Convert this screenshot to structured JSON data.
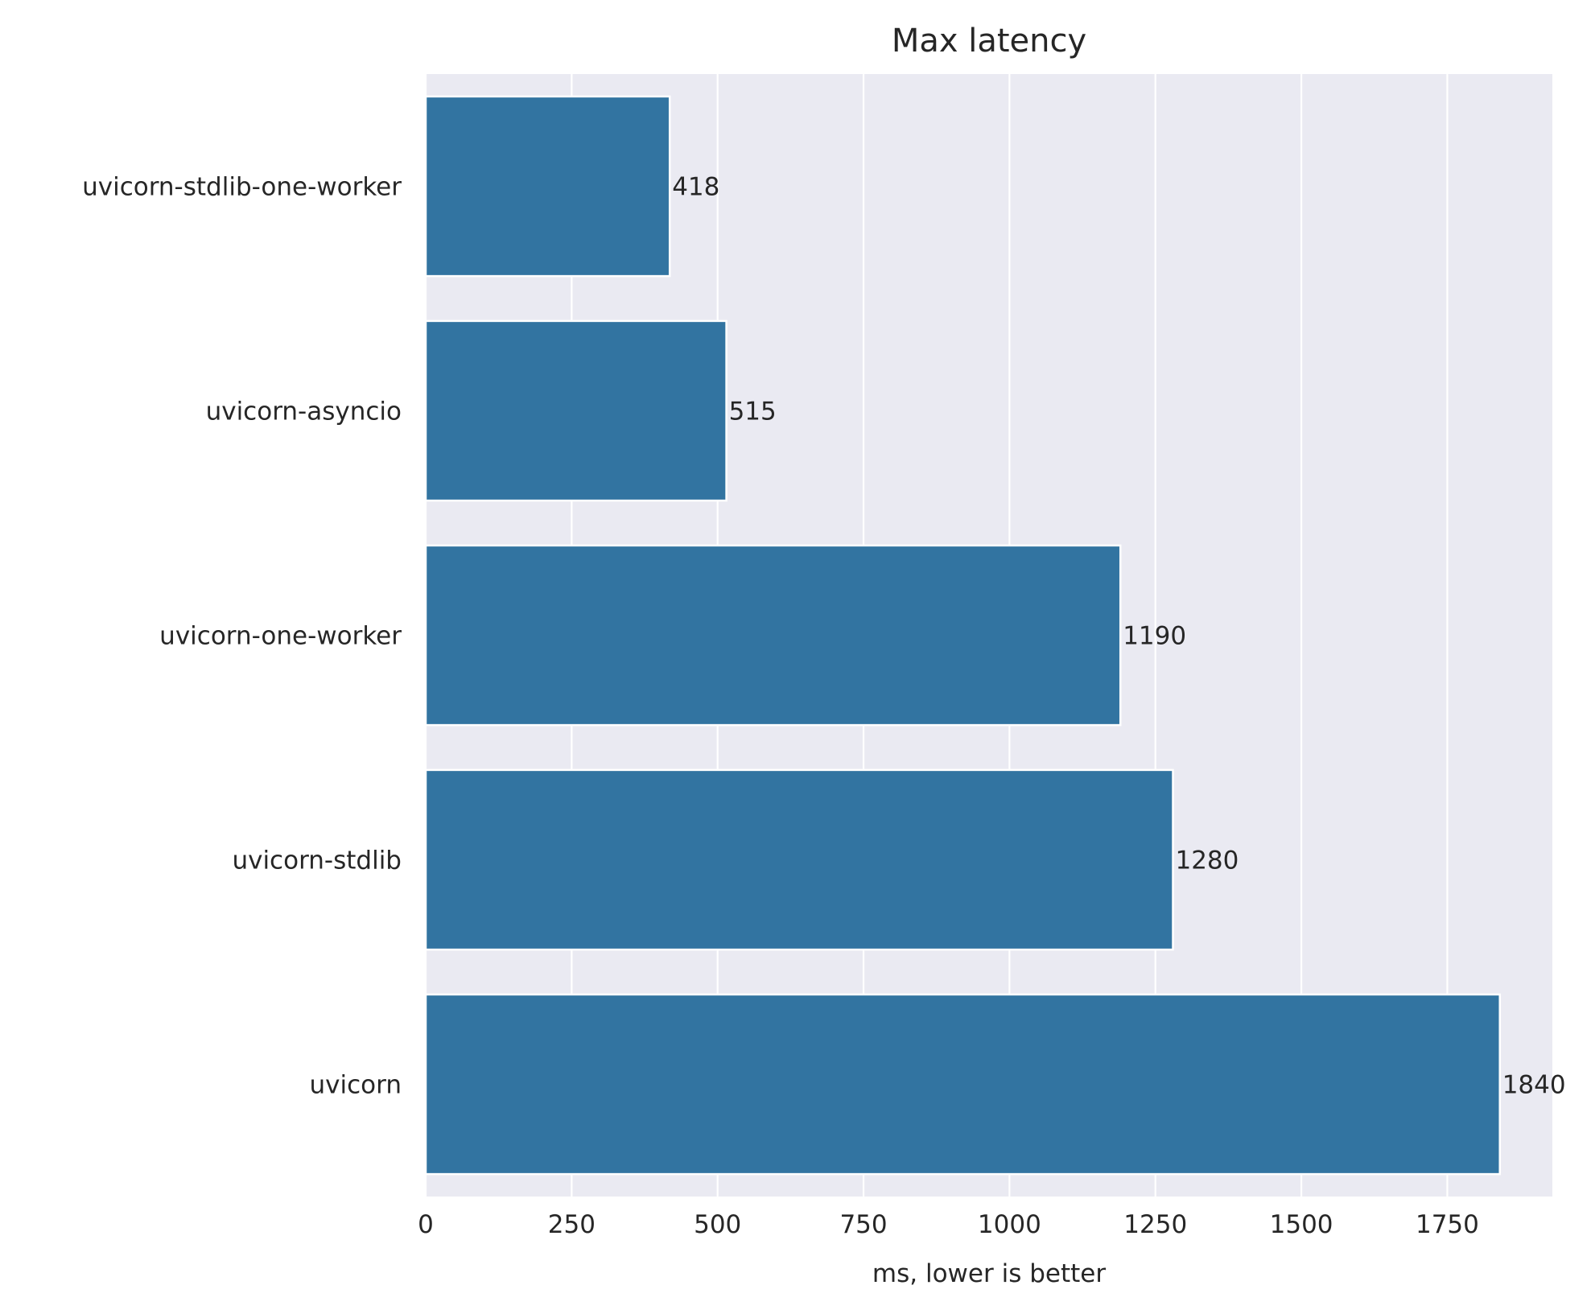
{
  "chart_data": {
    "type": "bar",
    "orientation": "horizontal",
    "title": "Max latency",
    "xlabel": "ms, lower is better",
    "ylabel": "",
    "categories": [
      "uvicorn-stdlib-one-worker",
      "uvicorn-asyncio",
      "uvicorn-one-worker",
      "uvicorn-stdlib",
      "uvicorn"
    ],
    "values": [
      418,
      515,
      1190,
      1280,
      1840
    ],
    "value_labels": [
      "418",
      "515",
      "1190",
      "1280",
      "1840"
    ],
    "xlim": [
      0,
      1930
    ],
    "xticks": [
      0,
      250,
      500,
      750,
      1000,
      1250,
      1500,
      1750
    ],
    "xtick_labels": [
      "0",
      "250",
      "500",
      "750",
      "1000",
      "1250",
      "1500",
      "1750"
    ],
    "grid": true,
    "colors": {
      "bar": "#3274a1",
      "background": "#eaeaf2",
      "grid": "#ffffff",
      "text": "#262626"
    }
  }
}
